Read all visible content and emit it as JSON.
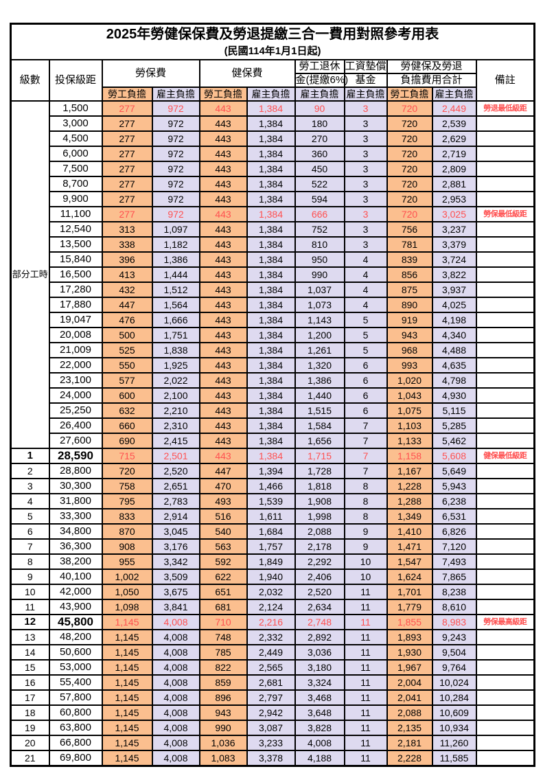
{
  "title": "2025年勞健保保費及勞退提繳三合一費用對照參考用表",
  "subtitle": "(民國114年1月1日起)",
  "colors": {
    "employee_column_bg": "#FBBF8F",
    "employer_column_bg": "#DEDAF0",
    "highlight_text": "#FF5050",
    "border": "#000000"
  },
  "header": {
    "level": "級數",
    "bracket": "投保級距",
    "labor_ins": "勞保費",
    "health_ins": "健保費",
    "pension_line1": "勞工退休",
    "pension_line2": "金(提繳6%)",
    "wage_fund_line1": "工資墊償",
    "wage_fund_line2": "基金",
    "total_line1": "勞健保及勞退",
    "total_line2": "負擔費用合計",
    "remark": "備註",
    "employee": "勞工負擔",
    "employer": "雇主負擔"
  },
  "part_time_label": "部分工時",
  "rows": [
    {
      "level": "",
      "bracket": "1,500",
      "values": [
        "277",
        "972",
        "443",
        "1,384",
        "90",
        "3",
        "720",
        "2,449"
      ],
      "remark": "勞退最低級距",
      "red": true
    },
    {
      "level": "",
      "bracket": "3,000",
      "values": [
        "277",
        "972",
        "443",
        "1,384",
        "180",
        "3",
        "720",
        "2,539"
      ],
      "remark": ""
    },
    {
      "level": "",
      "bracket": "4,500",
      "values": [
        "277",
        "972",
        "443",
        "1,384",
        "270",
        "3",
        "720",
        "2,629"
      ],
      "remark": ""
    },
    {
      "level": "",
      "bracket": "6,000",
      "values": [
        "277",
        "972",
        "443",
        "1,384",
        "360",
        "3",
        "720",
        "2,719"
      ],
      "remark": ""
    },
    {
      "level": "",
      "bracket": "7,500",
      "values": [
        "277",
        "972",
        "443",
        "1,384",
        "450",
        "3",
        "720",
        "2,809"
      ],
      "remark": ""
    },
    {
      "level": "",
      "bracket": "8,700",
      "values": [
        "277",
        "972",
        "443",
        "1,384",
        "522",
        "3",
        "720",
        "2,881"
      ],
      "remark": ""
    },
    {
      "level": "",
      "bracket": "9,900",
      "values": [
        "277",
        "972",
        "443",
        "1,384",
        "594",
        "3",
        "720",
        "2,953"
      ],
      "remark": ""
    },
    {
      "level": "",
      "bracket": "11,100",
      "values": [
        "277",
        "972",
        "443",
        "1,384",
        "666",
        "3",
        "720",
        "3,025"
      ],
      "remark": "勞保最低級距",
      "red": true
    },
    {
      "level": "",
      "bracket": "12,540",
      "values": [
        "313",
        "1,097",
        "443",
        "1,384",
        "752",
        "3",
        "756",
        "3,237"
      ],
      "remark": ""
    },
    {
      "level": "",
      "bracket": "13,500",
      "values": [
        "338",
        "1,182",
        "443",
        "1,384",
        "810",
        "3",
        "781",
        "3,379"
      ],
      "remark": ""
    },
    {
      "level": "",
      "bracket": "15,840",
      "values": [
        "396",
        "1,386",
        "443",
        "1,384",
        "950",
        "4",
        "839",
        "3,724"
      ],
      "remark": ""
    },
    {
      "level": "",
      "bracket": "16,500",
      "values": [
        "413",
        "1,444",
        "443",
        "1,384",
        "990",
        "4",
        "856",
        "3,822"
      ],
      "remark": ""
    },
    {
      "level": "",
      "bracket": "17,280",
      "values": [
        "432",
        "1,512",
        "443",
        "1,384",
        "1,037",
        "4",
        "875",
        "3,937"
      ],
      "remark": ""
    },
    {
      "level": "",
      "bracket": "17,880",
      "values": [
        "447",
        "1,564",
        "443",
        "1,384",
        "1,073",
        "4",
        "890",
        "4,025"
      ],
      "remark": ""
    },
    {
      "level": "",
      "bracket": "19,047",
      "values": [
        "476",
        "1,666",
        "443",
        "1,384",
        "1,143",
        "5",
        "919",
        "4,198"
      ],
      "remark": ""
    },
    {
      "level": "",
      "bracket": "20,008",
      "values": [
        "500",
        "1,751",
        "443",
        "1,384",
        "1,200",
        "5",
        "943",
        "4,340"
      ],
      "remark": ""
    },
    {
      "level": "",
      "bracket": "21,009",
      "values": [
        "525",
        "1,838",
        "443",
        "1,384",
        "1,261",
        "5",
        "968",
        "4,488"
      ],
      "remark": ""
    },
    {
      "level": "",
      "bracket": "22,000",
      "values": [
        "550",
        "1,925",
        "443",
        "1,384",
        "1,320",
        "6",
        "993",
        "4,635"
      ],
      "remark": ""
    },
    {
      "level": "",
      "bracket": "23,100",
      "values": [
        "577",
        "2,022",
        "443",
        "1,384",
        "1,386",
        "6",
        "1,020",
        "4,798"
      ],
      "remark": ""
    },
    {
      "level": "",
      "bracket": "24,000",
      "values": [
        "600",
        "2,100",
        "443",
        "1,384",
        "1,440",
        "6",
        "1,043",
        "4,930"
      ],
      "remark": ""
    },
    {
      "level": "",
      "bracket": "25,250",
      "values": [
        "632",
        "2,210",
        "443",
        "1,384",
        "1,515",
        "6",
        "1,075",
        "5,115"
      ],
      "remark": ""
    },
    {
      "level": "",
      "bracket": "26,400",
      "values": [
        "660",
        "2,310",
        "443",
        "1,384",
        "1,584",
        "7",
        "1,103",
        "5,285"
      ],
      "remark": ""
    },
    {
      "level": "",
      "bracket": "27,600",
      "values": [
        "690",
        "2,415",
        "443",
        "1,384",
        "1,656",
        "7",
        "1,133",
        "5,462"
      ],
      "remark": ""
    },
    {
      "level": "1",
      "bracket": "28,590",
      "values": [
        "715",
        "2,501",
        "443",
        "1,384",
        "1,715",
        "7",
        "1,158",
        "5,608"
      ],
      "remark": "健保最低級距",
      "red": true,
      "emph": true
    },
    {
      "level": "2",
      "bracket": "28,800",
      "values": [
        "720",
        "2,520",
        "447",
        "1,394",
        "1,728",
        "7",
        "1,167",
        "5,649"
      ],
      "remark": ""
    },
    {
      "level": "3",
      "bracket": "30,300",
      "values": [
        "758",
        "2,651",
        "470",
        "1,466",
        "1,818",
        "8",
        "1,228",
        "5,943"
      ],
      "remark": ""
    },
    {
      "level": "4",
      "bracket": "31,800",
      "values": [
        "795",
        "2,783",
        "493",
        "1,539",
        "1,908",
        "8",
        "1,288",
        "6,238"
      ],
      "remark": ""
    },
    {
      "level": "5",
      "bracket": "33,300",
      "values": [
        "833",
        "2,914",
        "516",
        "1,611",
        "1,998",
        "8",
        "1,349",
        "6,531"
      ],
      "remark": ""
    },
    {
      "level": "6",
      "bracket": "34,800",
      "values": [
        "870",
        "3,045",
        "540",
        "1,684",
        "2,088",
        "9",
        "1,410",
        "6,826"
      ],
      "remark": ""
    },
    {
      "level": "7",
      "bracket": "36,300",
      "values": [
        "908",
        "3,176",
        "563",
        "1,757",
        "2,178",
        "9",
        "1,471",
        "7,120"
      ],
      "remark": ""
    },
    {
      "level": "8",
      "bracket": "38,200",
      "values": [
        "955",
        "3,342",
        "592",
        "1,849",
        "2,292",
        "10",
        "1,547",
        "7,493"
      ],
      "remark": ""
    },
    {
      "level": "9",
      "bracket": "40,100",
      "values": [
        "1,002",
        "3,509",
        "622",
        "1,940",
        "2,406",
        "10",
        "1,624",
        "7,865"
      ],
      "remark": ""
    },
    {
      "level": "10",
      "bracket": "42,000",
      "values": [
        "1,050",
        "3,675",
        "651",
        "2,032",
        "2,520",
        "11",
        "1,701",
        "8,238"
      ],
      "remark": ""
    },
    {
      "level": "11",
      "bracket": "43,900",
      "values": [
        "1,098",
        "3,841",
        "681",
        "2,124",
        "2,634",
        "11",
        "1,779",
        "8,610"
      ],
      "remark": ""
    },
    {
      "level": "12",
      "bracket": "45,800",
      "values": [
        "1,145",
        "4,008",
        "710",
        "2,216",
        "2,748",
        "11",
        "1,855",
        "8,983"
      ],
      "remark": "勞保最高級距",
      "red": true,
      "emph": true
    },
    {
      "level": "13",
      "bracket": "48,200",
      "values": [
        "1,145",
        "4,008",
        "748",
        "2,332",
        "2,892",
        "11",
        "1,893",
        "9,243"
      ],
      "remark": ""
    },
    {
      "level": "14",
      "bracket": "50,600",
      "values": [
        "1,145",
        "4,008",
        "785",
        "2,449",
        "3,036",
        "11",
        "1,930",
        "9,504"
      ],
      "remark": ""
    },
    {
      "level": "15",
      "bracket": "53,000",
      "values": [
        "1,145",
        "4,008",
        "822",
        "2,565",
        "3,180",
        "11",
        "1,967",
        "9,764"
      ],
      "remark": ""
    },
    {
      "level": "16",
      "bracket": "55,400",
      "values": [
        "1,145",
        "4,008",
        "859",
        "2,681",
        "3,324",
        "11",
        "2,004",
        "10,024"
      ],
      "remark": ""
    },
    {
      "level": "17",
      "bracket": "57,800",
      "values": [
        "1,145",
        "4,008",
        "896",
        "2,797",
        "3,468",
        "11",
        "2,041",
        "10,284"
      ],
      "remark": ""
    },
    {
      "level": "18",
      "bracket": "60,800",
      "values": [
        "1,145",
        "4,008",
        "943",
        "2,942",
        "3,648",
        "11",
        "2,088",
        "10,609"
      ],
      "remark": ""
    },
    {
      "level": "19",
      "bracket": "63,800",
      "values": [
        "1,145",
        "4,008",
        "990",
        "3,087",
        "3,828",
        "11",
        "2,135",
        "10,934"
      ],
      "remark": ""
    },
    {
      "level": "20",
      "bracket": "66,800",
      "values": [
        "1,145",
        "4,008",
        "1,036",
        "3,233",
        "4,008",
        "11",
        "2,181",
        "11,260"
      ],
      "remark": ""
    },
    {
      "level": "21",
      "bracket": "69,800",
      "values": [
        "1,145",
        "4,008",
        "1,083",
        "3,378",
        "4,188",
        "11",
        "2,228",
        "11,585"
      ],
      "remark": ""
    }
  ]
}
